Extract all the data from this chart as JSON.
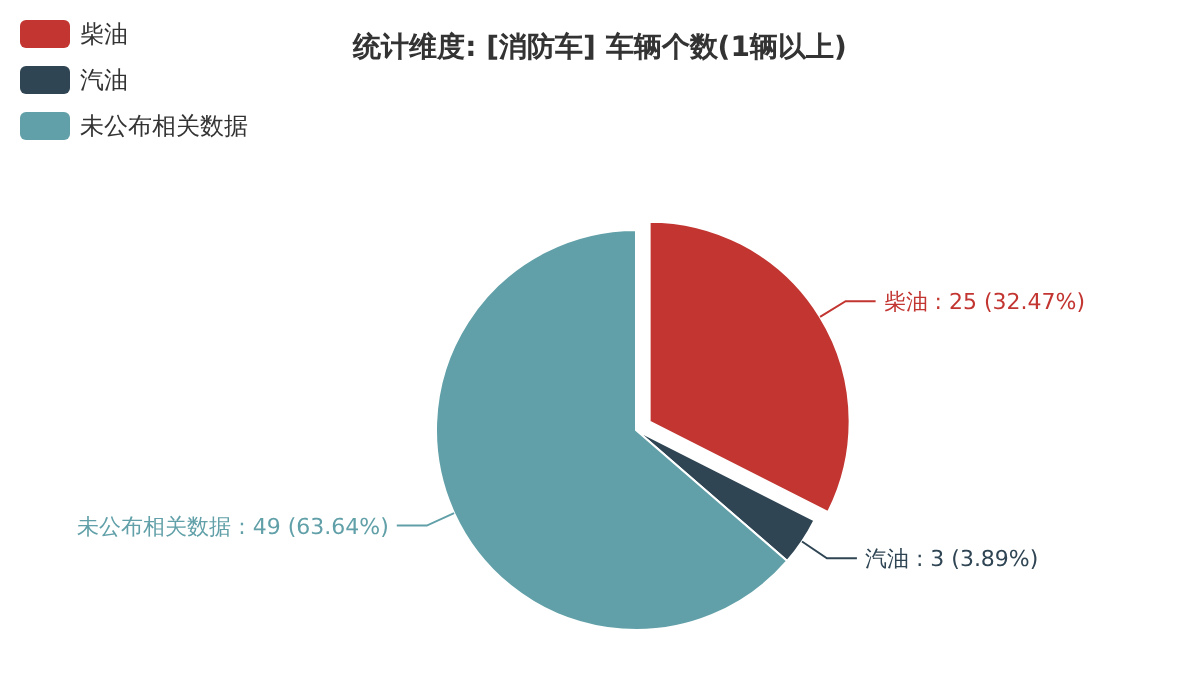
{
  "chart_data": {
    "type": "pie",
    "title": "统计维度: [消防车] 车辆个数(1辆以上)",
    "categories": [
      "柴油",
      "汽油",
      "未公布相关数据"
    ],
    "values": [
      25,
      3,
      49
    ],
    "colors": [
      "#c23531",
      "#2f4554",
      "#61a0a8"
    ],
    "value_labels": [
      ": 25 (32.47%)",
      ": 3 (3.89%)",
      ": 49 (63.64%)"
    ],
    "legend": "top left"
  }
}
